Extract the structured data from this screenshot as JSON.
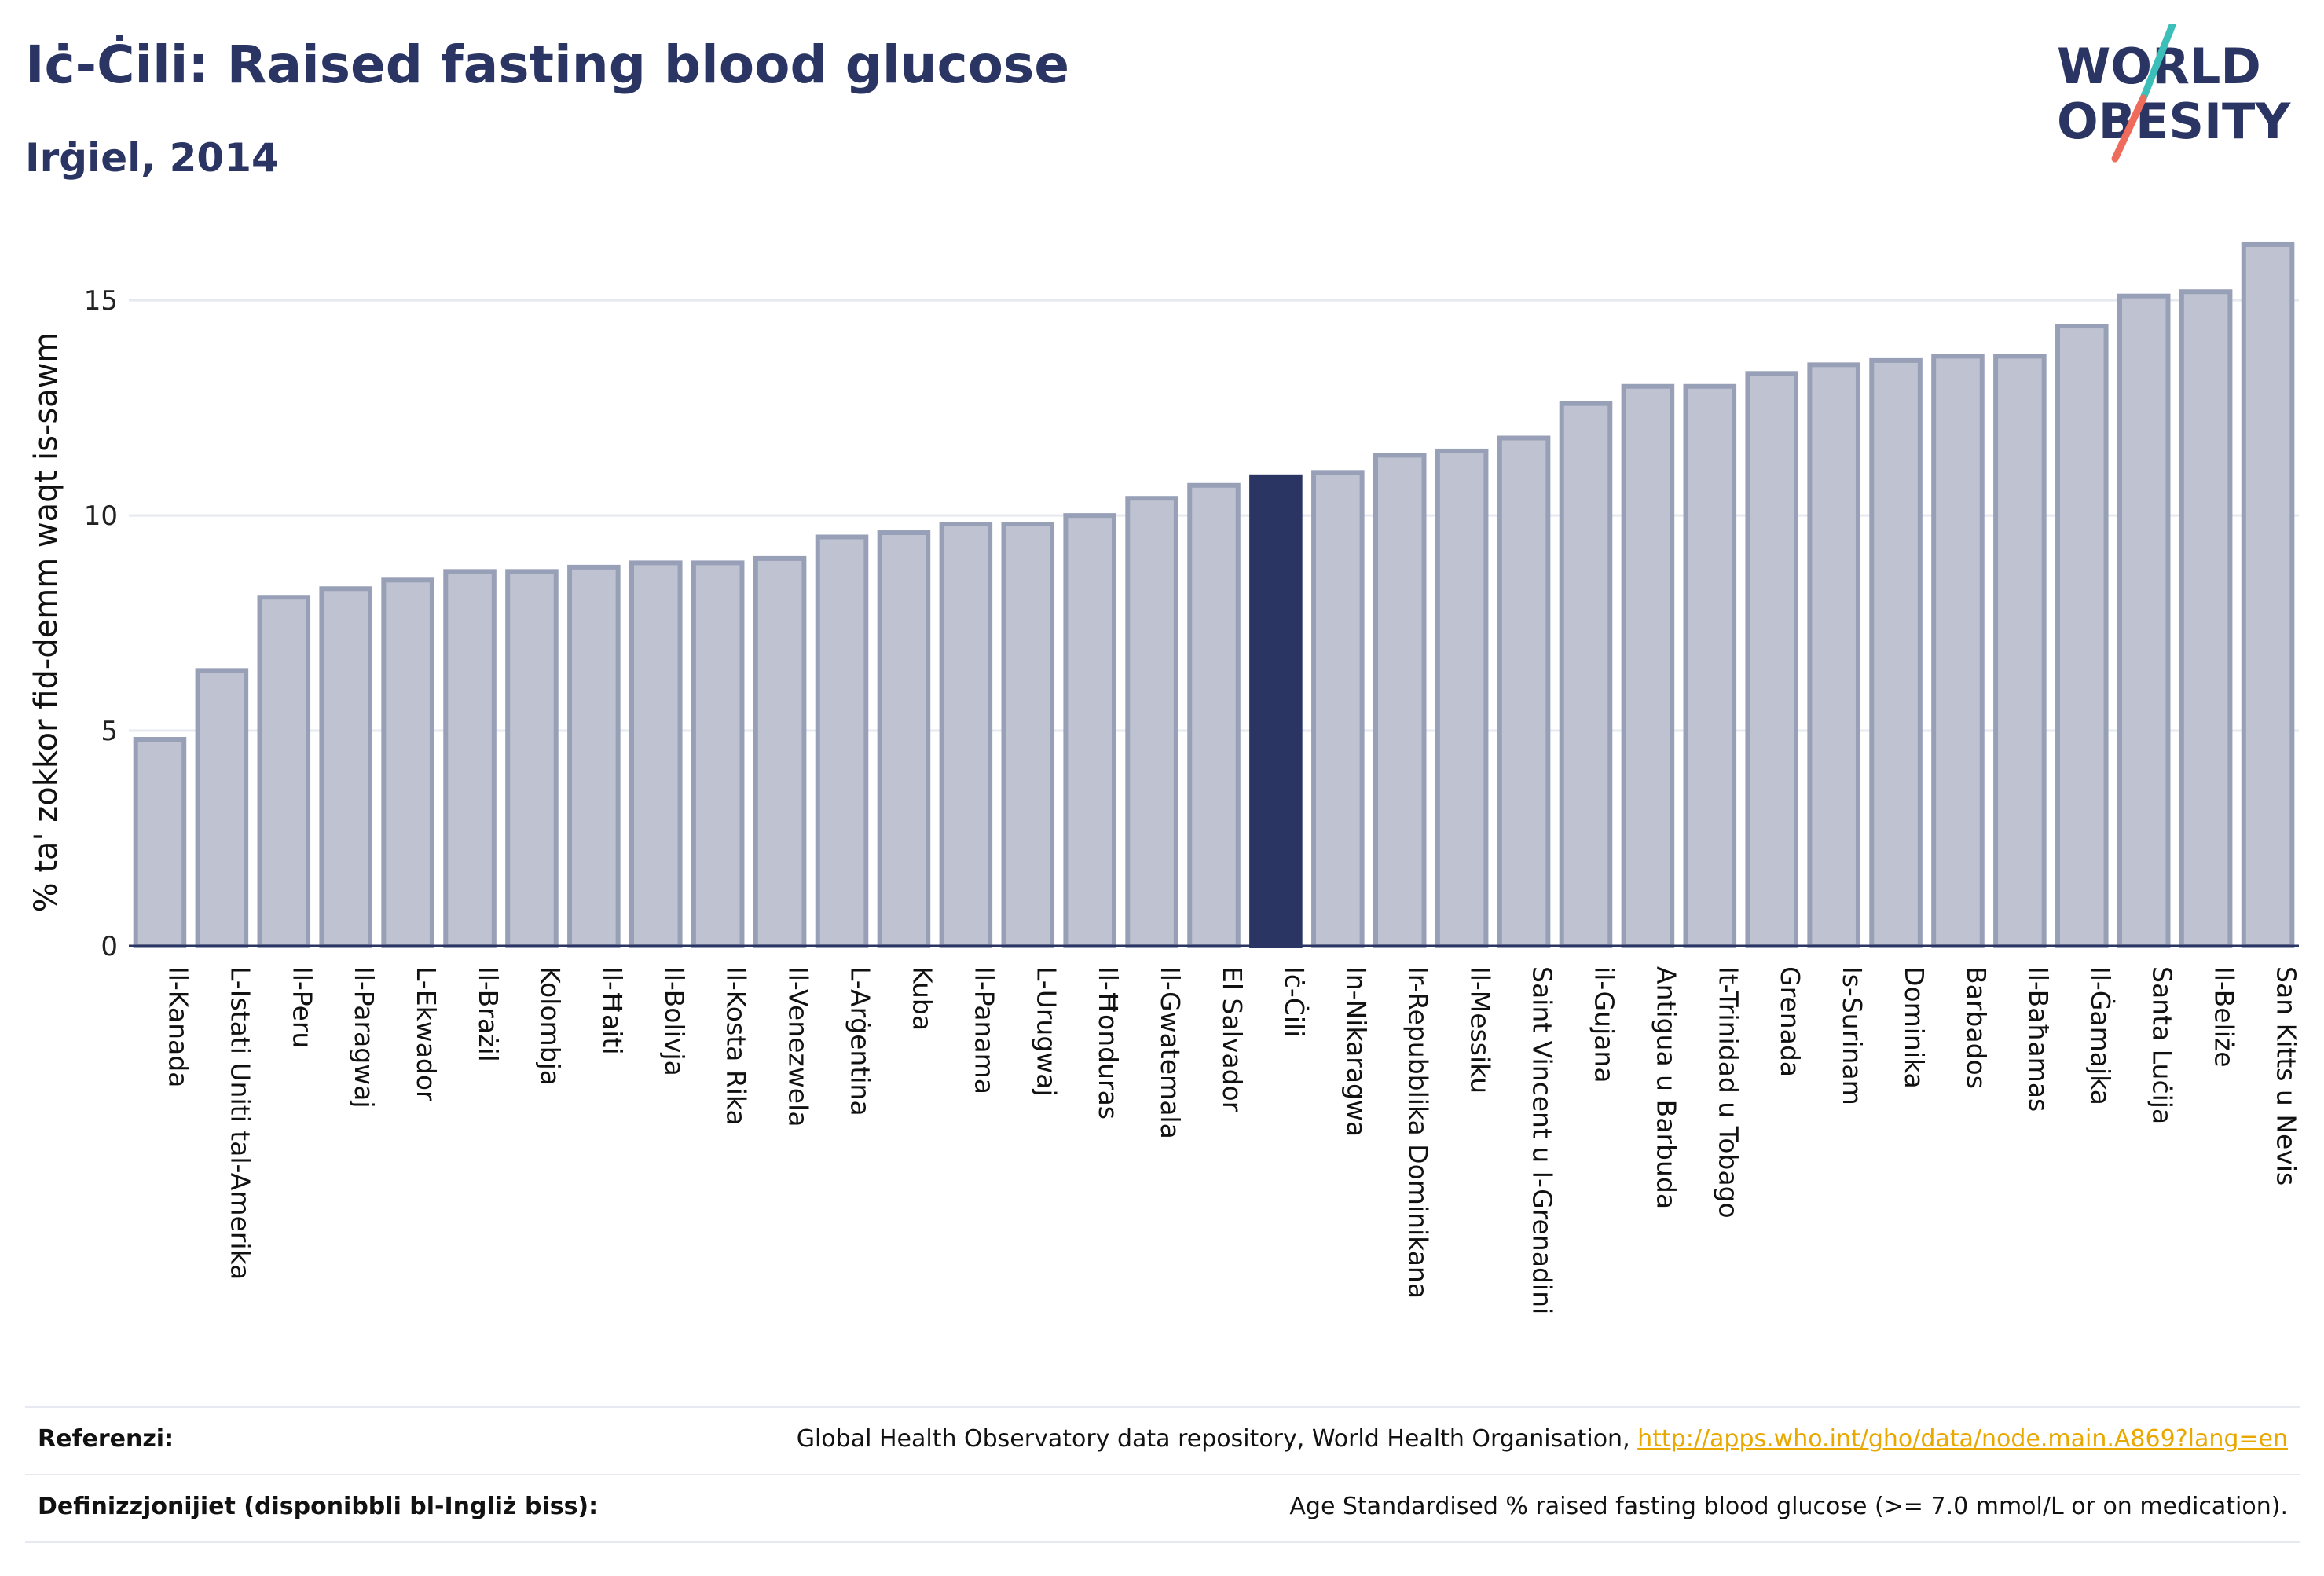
{
  "header": {
    "title": "Iċ-Ċili: Raised fasting blood glucose",
    "subtitle": "Irġiel, 2014"
  },
  "logo": {
    "text_line1": "WORLD",
    "text_line2": "OBESITY"
  },
  "colors": {
    "bar": "#bfc3d1",
    "bar_stroke": "#98a0b8",
    "highlight": "#2b3563",
    "grid": "#e6e9ef",
    "accent_link": "#e8a800"
  },
  "chart_data": {
    "type": "bar",
    "title": "Iċ-Ċili: Raised fasting blood glucose",
    "subtitle": "Irġiel, 2014",
    "xlabel": "",
    "ylabel": "% ta' zokkor fid-demm waqt is-sawm",
    "ylim": [
      0,
      16.5
    ],
    "yticks": [
      0,
      5,
      10,
      15
    ],
    "grid": true,
    "highlight_category": "Iċ-Ċili",
    "categories": [
      "Il-Kanada",
      "L-Istati Uniti tal-Amerika",
      "Il-Peru",
      "Il-Paragwaj",
      "L-Ekwador",
      "Il-Brażil",
      "Kolombja",
      "Il-Ħaiti",
      "Il-Bolivja",
      "Il-Kosta Rika",
      "Il-Venezwela",
      "L-Arġentina",
      "Kuba",
      "Il-Panama",
      "L-Urugwaj",
      "Il-Ħonduras",
      "Il-Gwatemala",
      "El Salvador",
      "Iċ-Ċili",
      "In-Nikaragwa",
      "Ir-Repubblika Dominikana",
      "Il-Messiku",
      "Saint Vincent u l-Grenadini",
      "il-Gujana",
      "Antigua u Barbuda",
      "It-Trinidad u Tobago",
      "Grenada",
      "Is-Surinam",
      "Dominika",
      "Barbados",
      "Il-Baħamas",
      "Il-Ġamajka",
      "Santa Luċija",
      "Il-Beliże",
      "San Kitts u Nevis"
    ],
    "values": [
      4.8,
      6.4,
      8.1,
      8.3,
      8.5,
      8.7,
      8.7,
      8.8,
      8.9,
      8.9,
      9.0,
      9.5,
      9.6,
      9.8,
      9.8,
      10.0,
      10.4,
      10.7,
      10.9,
      11.0,
      11.4,
      11.5,
      11.8,
      12.6,
      13.0,
      13.0,
      13.3,
      13.5,
      13.6,
      13.7,
      13.7,
      14.4,
      15.1,
      15.2,
      16.3
    ]
  },
  "footer": {
    "references_label": "Referenzi:",
    "references_text": "Global Health Observatory data repository, World Health Organisation, ",
    "references_link": "http://apps.who.int/gho/data/node.main.A869?lang=en",
    "definitions_label": "Definizzjonijiet (disponibbli bl-Ingliż biss):",
    "definitions_text": "Age Standardised % raised fasting blood glucose (>= 7.0 mmol/L or on medication)."
  }
}
